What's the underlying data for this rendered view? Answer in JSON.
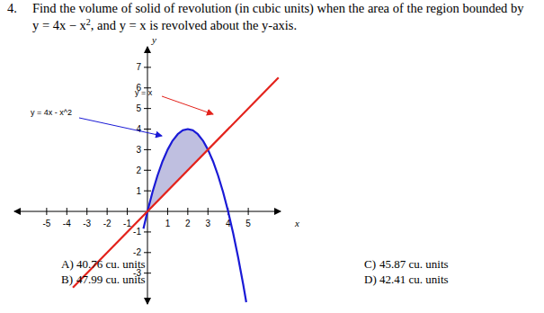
{
  "question": {
    "number": "4.",
    "line1": "Find the volume of solid of revolution (in cubic units) when the area of the region bounded by",
    "line2": [
      "y = 4x − x",
      "2",
      ", and y = x is revolved about the y-axis."
    ]
  },
  "chart_data": {
    "type": "line",
    "x_label": "x",
    "y_label": "y",
    "xlim": [
      -6.6,
      6.6
    ],
    "ylim": [
      -4.5,
      8
    ],
    "xticks": [
      -5,
      -4,
      -3,
      -2,
      -1,
      1,
      2,
      3,
      4,
      5
    ],
    "yticks": [
      -3,
      -2,
      -1,
      1,
      2,
      3,
      4,
      5,
      6,
      7
    ],
    "grid": false,
    "series": [
      {
        "name": "y = 4x - x^2",
        "color": "#1a1ad6",
        "x": [
          -0.2,
          0,
          0.25,
          0.5,
          0.75,
          1,
          1.25,
          1.5,
          1.75,
          2,
          2.25,
          2.5,
          2.75,
          3,
          3.25,
          3.5,
          3.75,
          4,
          4.25,
          4.5,
          4.75,
          4.9
        ],
        "values": [
          -0.84,
          0,
          0.94,
          1.75,
          2.44,
          3,
          3.44,
          3.75,
          3.94,
          4,
          3.94,
          3.75,
          3.44,
          3,
          2.44,
          1.75,
          0.94,
          0,
          -1.06,
          -2.25,
          -3.56,
          -4.41
        ]
      },
      {
        "name": "y = x",
        "color": "#e3221b",
        "x": [
          -3.7,
          6.5
        ],
        "values": [
          -3.7,
          6.5
        ]
      }
    ],
    "shaded_region": {
      "color": "#b4b4da",
      "x": [
        0,
        0.5,
        1,
        1.5,
        2,
        2.5,
        3
      ],
      "upper": [
        0,
        1.75,
        3,
        3.75,
        4,
        3.75,
        3
      ],
      "lower": [
        0,
        0.5,
        1,
        1.5,
        2,
        2.5,
        3
      ]
    }
  },
  "options": [
    {
      "letter": "A)",
      "text": "40.76 cu. units"
    },
    {
      "letter": "B)",
      "text": "47.99 cu. units"
    },
    {
      "letter": "C)",
      "text": "45.87 cu. units"
    },
    {
      "letter": "D)",
      "text": "42.41 cu. units"
    }
  ]
}
